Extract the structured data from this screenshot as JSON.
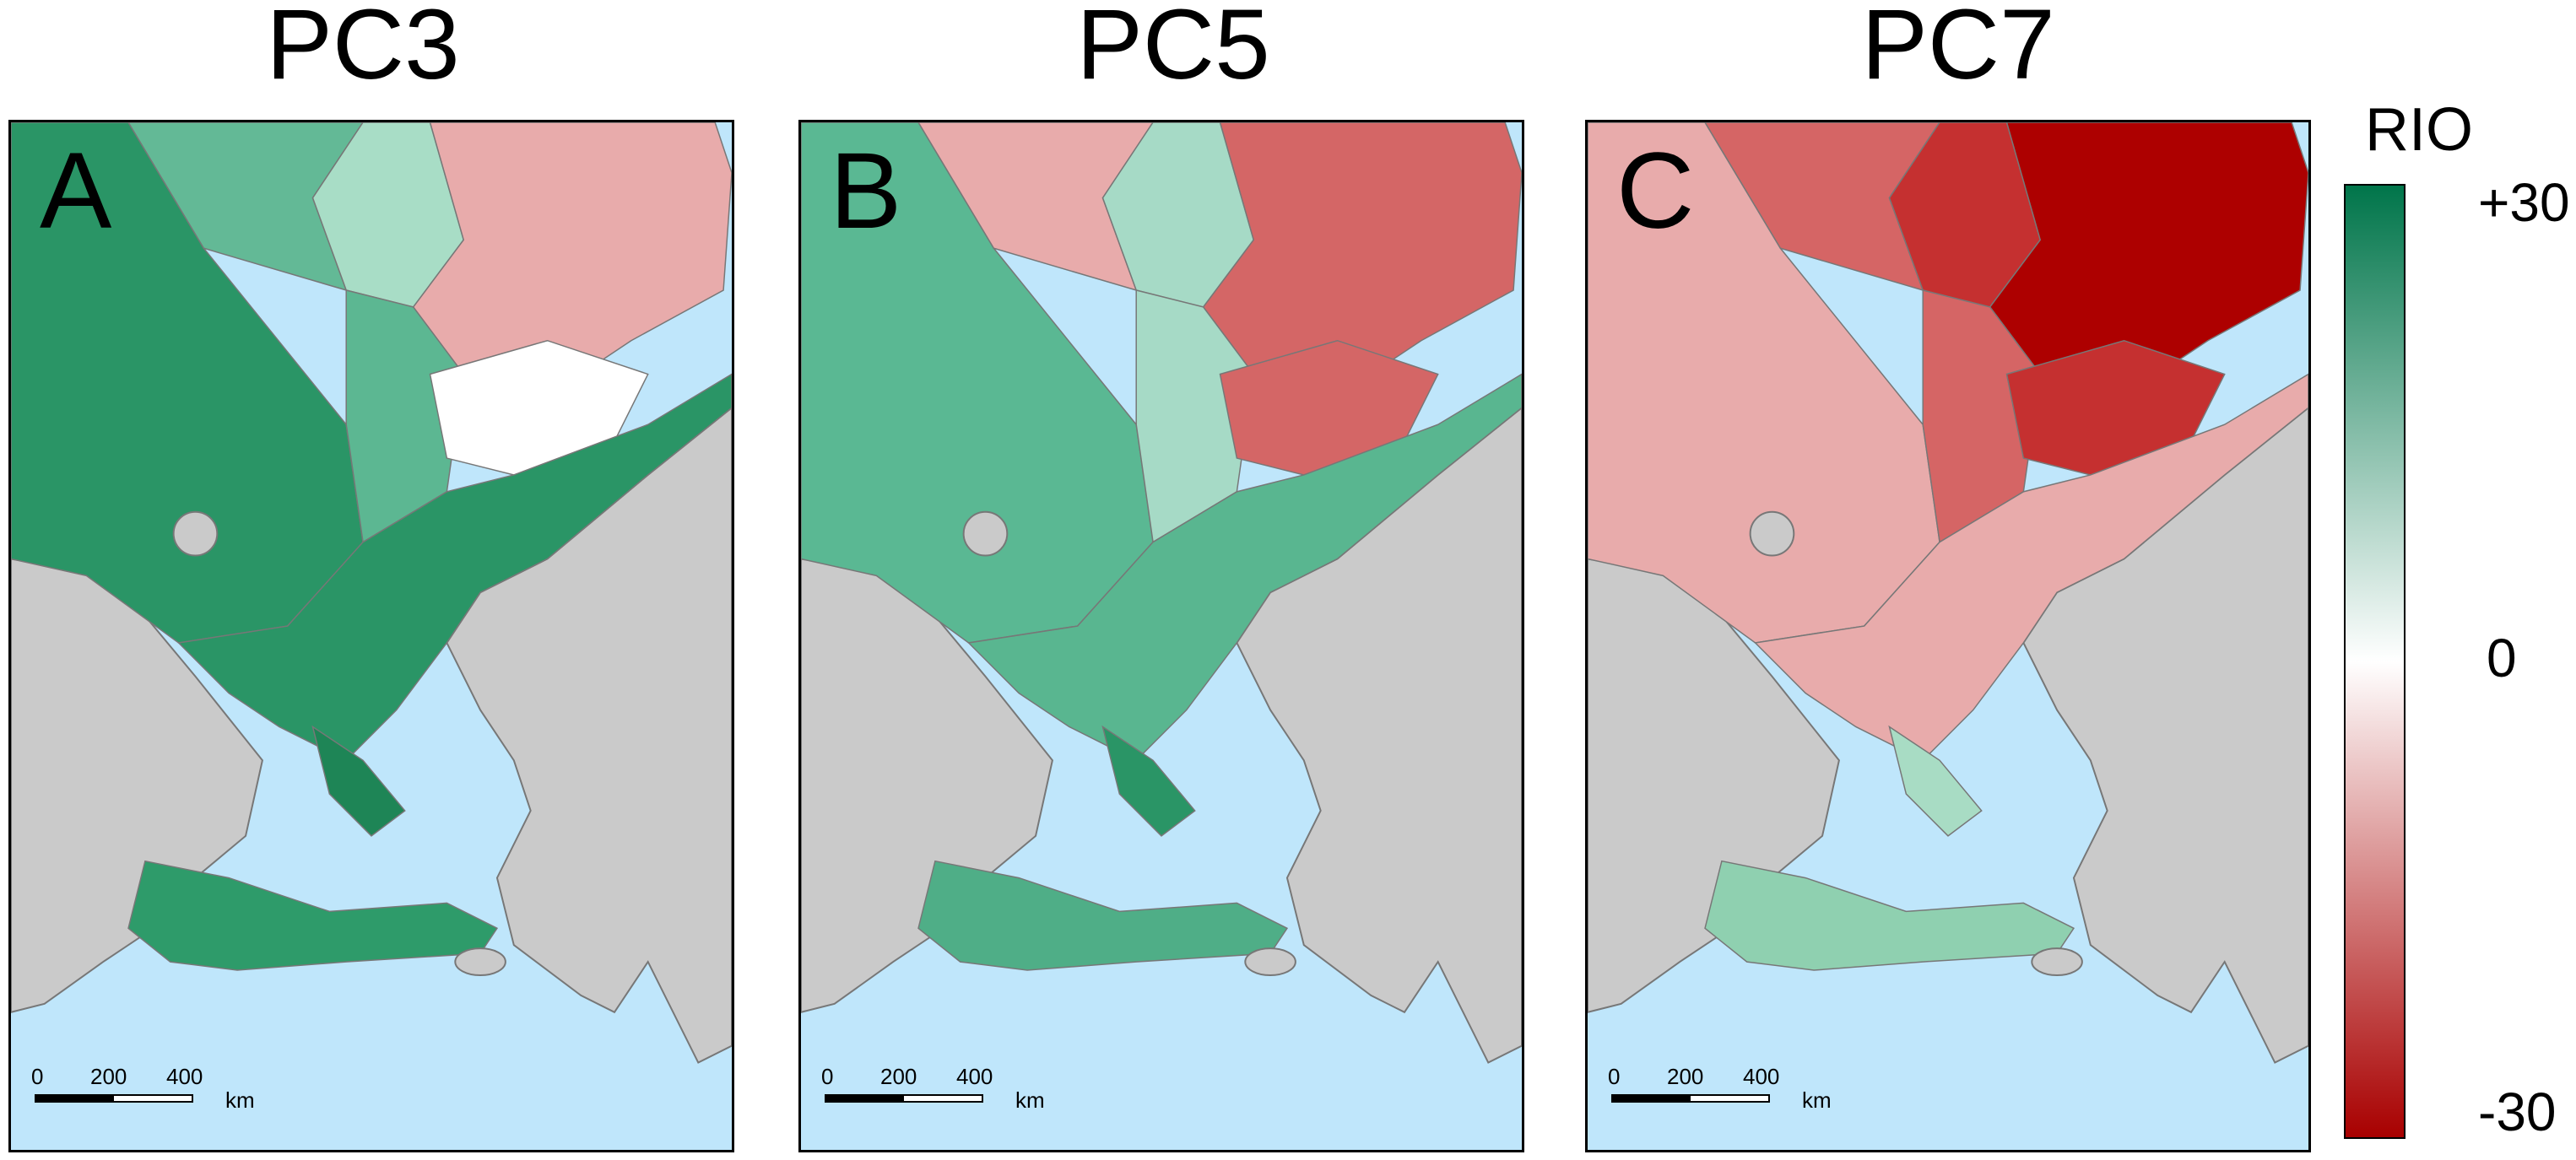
{
  "panels": [
    {
      "title": "PC3",
      "letter": "A",
      "colors": {
        "nw": "#2a9566",
        "north1": "#63b996",
        "north2": "#a8ddc6",
        "northeast": "#e8abab",
        "inland": "#5cb792",
        "white": "#ffffff",
        "coast": "#2a9566",
        "bay": "#1e8556",
        "archipelago": "#2e9b6a"
      }
    },
    {
      "title": "PC5",
      "letter": "B",
      "colors": {
        "nw": "#5ab893",
        "north1": "#e8abab",
        "north2": "#a6dac6",
        "northeast": "#d46666",
        "inland": "#a6dac6",
        "white": "#d46666",
        "coast": "#59b690",
        "bay": "#2a9566",
        "archipelago": "#4fae87"
      }
    },
    {
      "title": "PC7",
      "letter": "C",
      "colors": {
        "nw": "#e8abab",
        "north1": "#d56565",
        "north2": "#c53030",
        "northeast": "#ad0000",
        "inland": "#d56565",
        "white": "#c53030",
        "coast": "#e8abab",
        "bay": "#a8dcc4",
        "archipelago": "#8fd0b0"
      }
    }
  ],
  "scale": {
    "t0": "0",
    "t200": "200",
    "t400": "400",
    "unit": "km"
  },
  "legend": {
    "title": "RIO",
    "max_label": "+30",
    "mid_label": "0",
    "min_label": "-30",
    "color_max": "#00754a",
    "color_mid": "#ffffff",
    "color_min": "#a80000"
  }
}
